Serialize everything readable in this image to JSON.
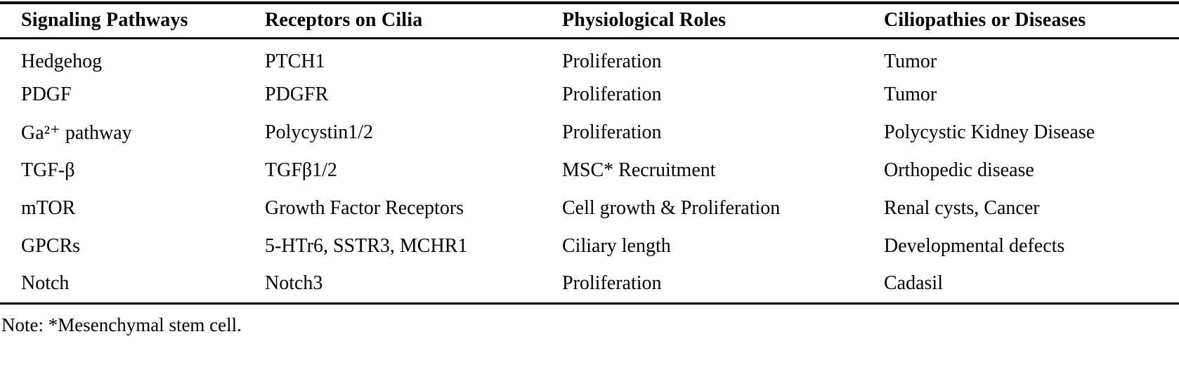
{
  "table": {
    "columns": [
      "Signaling Pathways",
      "Receptors on Cilia",
      "Physiological Roles",
      "Ciliopathies or Diseases"
    ],
    "rows": [
      [
        "Hedgehog",
        "PTCH1",
        "Proliferation",
        "Tumor"
      ],
      [
        "PDGF",
        "PDGFR",
        "Proliferation",
        "Tumor"
      ],
      [
        "Ga²⁺ pathway",
        "Polycystin1/2",
        "Proliferation",
        "Polycystic Kidney Disease"
      ],
      [
        "TGF-β",
        "TGFβ1/2",
        "MSC* Recruitment",
        "Orthopedic disease"
      ],
      [
        "mTOR",
        "Growth Factor Receptors",
        "Cell growth & Proliferation",
        "Renal cysts, Cancer"
      ],
      [
        "GPCRs",
        "5-HTr6, SSTR3, MCHR1",
        "Ciliary length",
        "Developmental defects"
      ],
      [
        "Notch",
        "Notch3",
        "Proliferation",
        "Cadasil"
      ]
    ],
    "note": "Note: *Mesenchymal stem cell."
  },
  "colors": {
    "text": "#000000",
    "background": "#ffffff",
    "rule": "#000000"
  }
}
